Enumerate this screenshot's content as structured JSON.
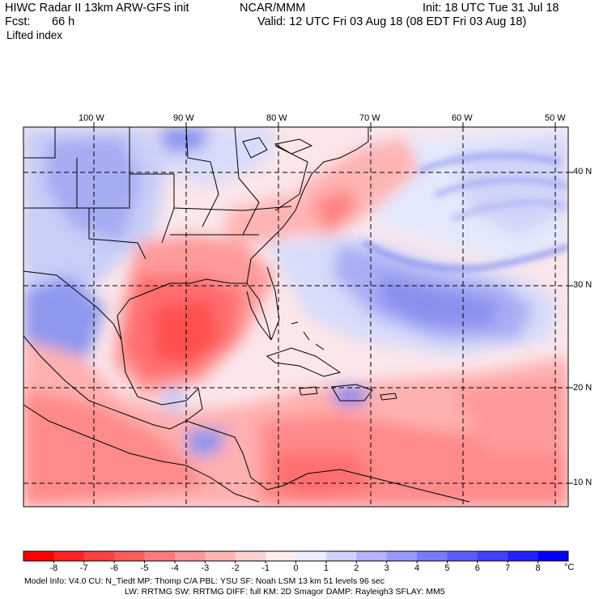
{
  "header": {
    "model_title": "HIWC Radar II 13km ARW-GFS init",
    "org": "NCAR/MMM",
    "init": "Init: 18 UTC Tue 31 Jul 18",
    "fcst_label": "Fcst:",
    "fcst_value": "66 h",
    "valid": "Valid: 12 UTC Fri 03 Aug 18 (08 EDT Fri 03 Aug 18)",
    "field": "Lifted index"
  },
  "map": {
    "lon_labels": [
      "100 W",
      "90 W",
      "80 W",
      "70 W",
      "60 W",
      "50 W"
    ],
    "lat_labels": [
      "40 N",
      "30 N",
      "20 N",
      "10 N"
    ]
  },
  "colorbar": {
    "labels": [
      "-8",
      "-7",
      "-6",
      "-5",
      "-4",
      "-3",
      "-2",
      "-1",
      "0",
      "1",
      "2",
      "3",
      "4",
      "5",
      "6",
      "7",
      "8"
    ],
    "unit": "°C",
    "colors": [
      "#ff0000",
      "#ff2222",
      "#ff4040",
      "#ff5c5c",
      "#ff7a7a",
      "#ff9898",
      "#ffb4b4",
      "#ffd2d2",
      "#ffeeee",
      "#eeeeff",
      "#d2d2ff",
      "#b4b4ff",
      "#9898ff",
      "#7a7aff",
      "#5c5cff",
      "#4040ff",
      "#2222ff",
      "#0000ff"
    ]
  },
  "footer": {
    "line1": "Model Info: V4.0     CU: N_Tiedt  MP: Thomp C/A    PBL: YSU        SF: Noah LSM     13 km    51 levels    96 sec",
    "line2": "LW: RRTMG     SW: RRTMG  DIFF: full    KM: 2D Smagor DAMP: Rayleigh3  SFLAY: MM5"
  }
}
